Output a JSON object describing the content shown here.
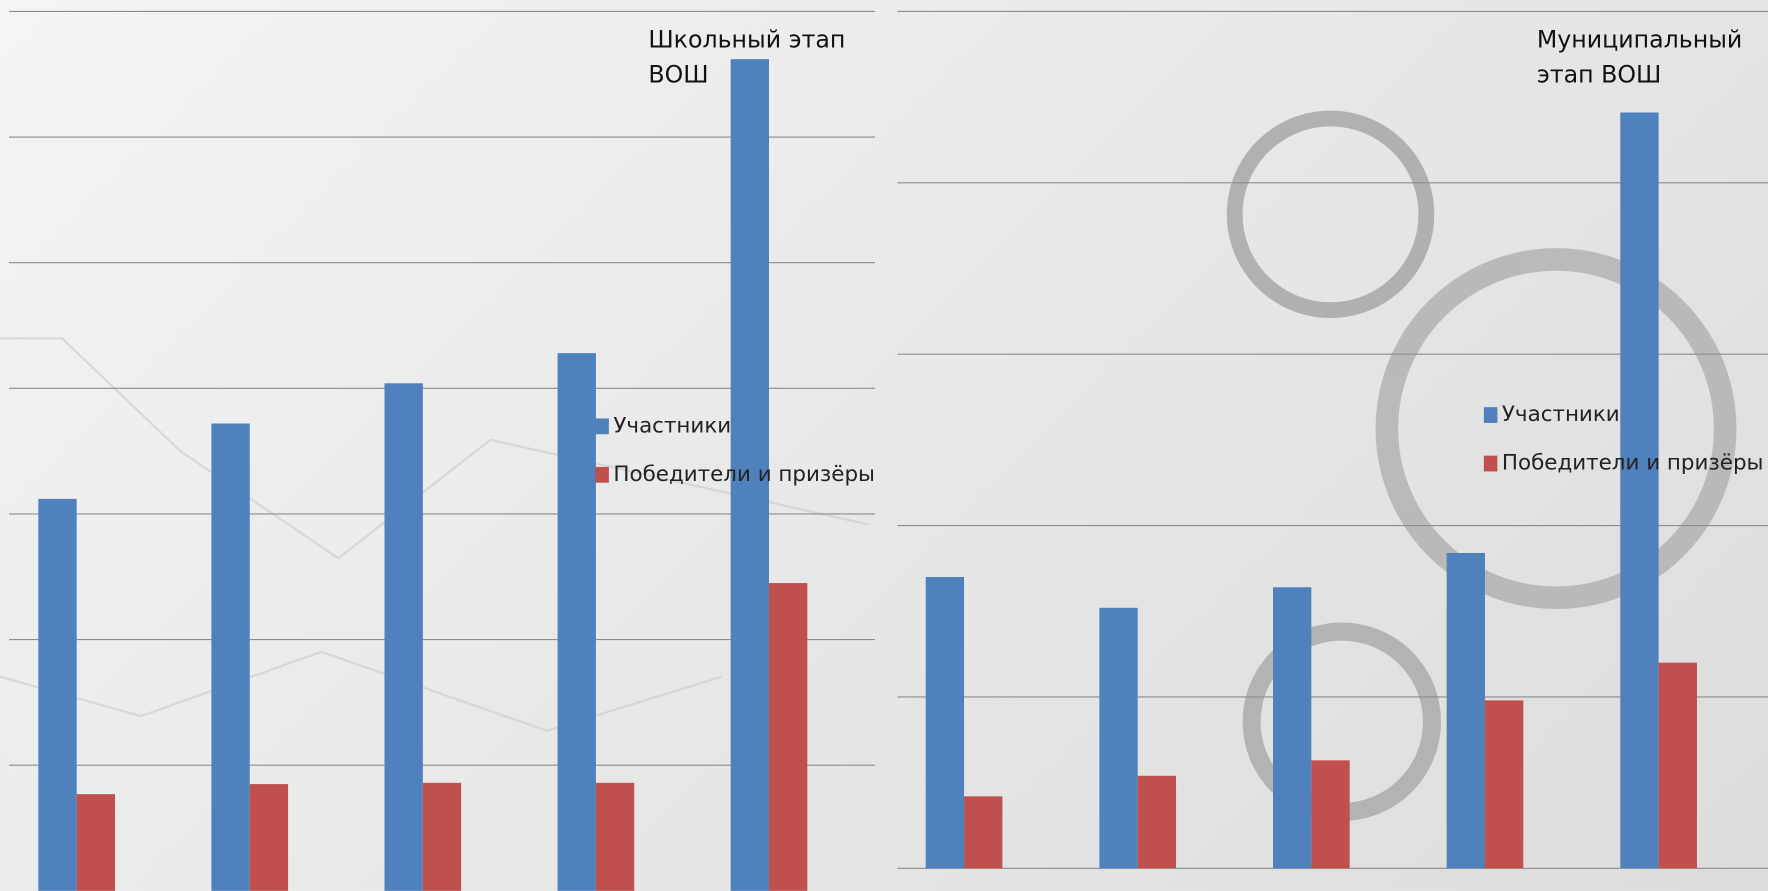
{
  "chart_data": [
    {
      "type": "bar",
      "title": "Школьный этап ВОШ",
      "categories": [
        null,
        null,
        null,
        null,
        null
      ],
      "series": [
        {
          "name": "Участники",
          "color": "#4f81bd",
          "values": [
            3.12,
            3.72,
            4.04,
            4.28,
            6.62
          ]
        },
        {
          "name": "Победители и призёры",
          "color": "#c0504d",
          "values": [
            0.77,
            0.85,
            0.86,
            0.86,
            2.45
          ]
        }
      ],
      "ylim": [
        0,
        7
      ],
      "yticks": [
        1,
        2,
        3,
        4,
        5,
        6,
        7
      ],
      "grid": true,
      "legend": "right"
    },
    {
      "type": "bar",
      "title": "Муниципальный этап ВОШ",
      "categories": [
        null,
        null,
        null,
        null,
        null
      ],
      "series": [
        {
          "name": "Участники",
          "color": "#4f81bd",
          "values": [
            1.7,
            1.52,
            1.64,
            1.84,
            4.41
          ]
        },
        {
          "name": "Победители и призёры",
          "color": "#c0504d",
          "values": [
            0.42,
            0.54,
            0.63,
            0.98,
            1.2
          ]
        }
      ],
      "ylim": [
        0,
        5
      ],
      "yticks": [
        0,
        1,
        2,
        3,
        4,
        5
      ],
      "grid": true,
      "legend": "right"
    }
  ]
}
